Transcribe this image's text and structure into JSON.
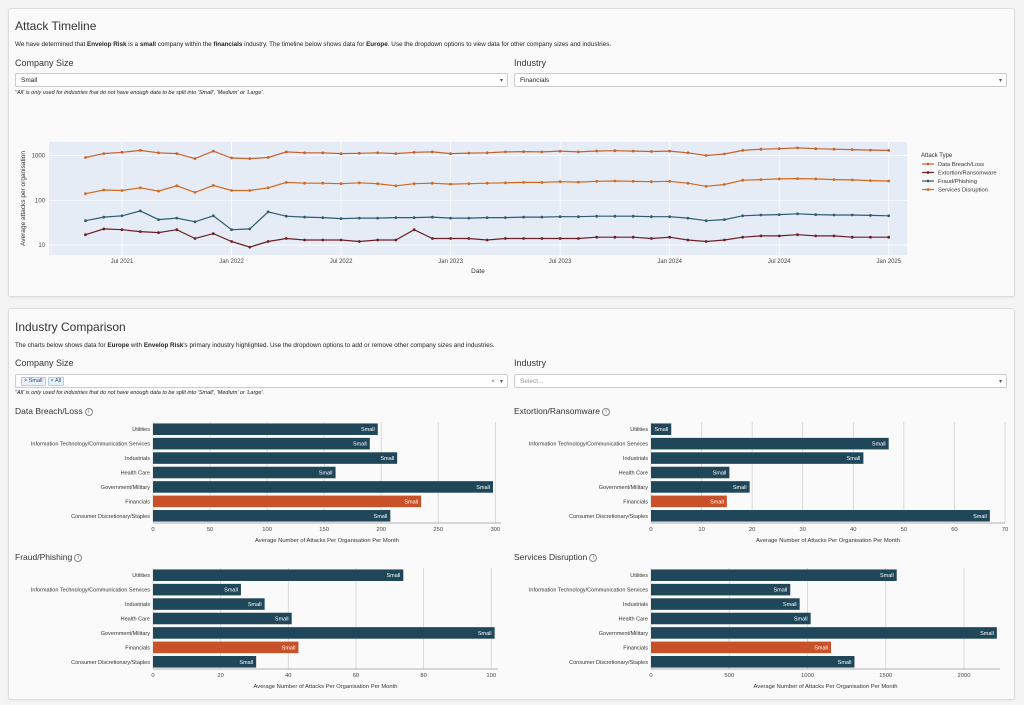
{
  "timeline": {
    "title": "Attack Timeline",
    "desc": {
      "p1": "We have determined that ",
      "company": "Envelop Risk",
      "p2": " is a ",
      "size": "small",
      "p3": " company within the ",
      "industry": "financials",
      "p4": " industry. The timeline below shows data for ",
      "region": "Europe",
      "p5": ". Use the dropdown options to view data for other company sizes and industries."
    },
    "company_size_label": "Company Size",
    "company_size_value": "Small",
    "industry_label": "Industry",
    "industry_value": "Financials",
    "note": "\"All' is only used for industries that do not have enough data to be split into 'Small', 'Medium' or 'Large'."
  },
  "comparison": {
    "title": "Industry Comparison",
    "desc": {
      "p1": "The charts below shows data for ",
      "region": "Europe",
      "p2": " with ",
      "company": "Envelop Risk",
      "p3": "'s primary industry highlighted. Use the dropdown options to add or remove other company sizes and industries."
    },
    "company_size_label": "Company Size",
    "chips": [
      "Small",
      "All"
    ],
    "chip_remove": "×",
    "clear": "×",
    "industry_label": "Industry",
    "industry_placeholder": "Select...",
    "note": "\"All' is only used for industries that do not have enough data to be split into 'Small', 'Medium' or 'Large'."
  },
  "colors": {
    "bar": "#1f4659",
    "highlight": "#c9512a",
    "plot_bg": "#e5ecf6",
    "breach": "#c8622c",
    "extortion": "#6d1f26",
    "fraud": "#2e5c70",
    "disruption": "#d2691e"
  },
  "chart_data": [
    {
      "type": "line",
      "x_axis_label": "Date",
      "y_axis_label": "Average attacks per organisation",
      "y_scale": "log",
      "ylim": [
        6,
        2000
      ],
      "x_range": [
        "2021-03",
        "2025-02"
      ],
      "x_ticks": [
        "Jul 2021",
        "Jan 2022",
        "Jul 2022",
        "Jan 2023",
        "Jul 2023",
        "Jan 2024",
        "Jul 2024",
        "Jan 2025"
      ],
      "y_ticks": [
        "10",
        "100",
        "1000"
      ],
      "legend_title": "Attack Type",
      "legend_position": "right",
      "x": [
        "2021-05",
        "2021-06",
        "2021-07",
        "2021-08",
        "2021-09",
        "2021-10",
        "2021-11",
        "2021-12",
        "2022-01",
        "2022-02",
        "2022-03",
        "2022-04",
        "2022-05",
        "2022-06",
        "2022-07",
        "2022-08",
        "2022-09",
        "2022-10",
        "2022-11",
        "2022-12",
        "2023-01",
        "2023-02",
        "2023-03",
        "2023-04",
        "2023-05",
        "2023-06",
        "2023-07",
        "2023-08",
        "2023-09",
        "2023-10",
        "2023-11",
        "2023-12",
        "2024-01",
        "2024-02",
        "2024-03",
        "2024-04",
        "2024-05",
        "2024-06",
        "2024-07",
        "2024-08",
        "2024-09",
        "2024-10",
        "2024-11",
        "2024-12",
        "2025-01"
      ],
      "series": [
        {
          "name": "Data Breach/Loss",
          "values": [
            900,
            1100,
            1180,
            1300,
            1150,
            1100,
            850,
            1250,
            880,
            850,
            900,
            1200,
            1150,
            1150,
            1100,
            1120,
            1150,
            1100,
            1180,
            1200,
            1100,
            1130,
            1150,
            1200,
            1220,
            1200,
            1250,
            1200,
            1260,
            1280,
            1250,
            1230,
            1250,
            1150,
            1000,
            1080,
            1300,
            1380,
            1420,
            1480,
            1420,
            1380,
            1350,
            1320,
            1300
          ],
          "color": "breach"
        },
        {
          "name": "Extortion/Ransomware",
          "values": [
            17,
            23,
            22,
            20,
            19,
            22,
            14,
            18,
            12,
            9,
            12,
            14,
            13,
            13,
            13,
            12,
            13,
            13,
            22,
            14,
            14,
            14,
            13,
            14,
            14,
            14,
            14,
            14,
            15,
            15,
            15,
            14,
            15,
            13,
            12,
            13,
            15,
            16,
            16,
            17,
            16,
            16,
            15,
            15,
            15
          ],
          "color": "extortion"
        },
        {
          "name": "Fraud/Phishing",
          "values": [
            35,
            42,
            45,
            58,
            37,
            40,
            33,
            45,
            22,
            23,
            55,
            44,
            42,
            41,
            39,
            40,
            40,
            41,
            41,
            42,
            40,
            40,
            41,
            41,
            42,
            42,
            43,
            43,
            44,
            44,
            44,
            43,
            43,
            40,
            35,
            37,
            45,
            47,
            48,
            50,
            48,
            47,
            47,
            46,
            45
          ],
          "color": "fraud"
        },
        {
          "name": "Services Disruption",
          "values": [
            140,
            170,
            165,
            190,
            160,
            210,
            150,
            215,
            165,
            165,
            190,
            250,
            240,
            240,
            235,
            245,
            235,
            210,
            235,
            240,
            230,
            235,
            240,
            245,
            250,
            250,
            260,
            255,
            265,
            270,
            265,
            260,
            265,
            240,
            205,
            225,
            280,
            290,
            300,
            305,
            300,
            290,
            285,
            275,
            270
          ],
          "color": "disruption"
        }
      ]
    },
    {
      "type": "bar",
      "orientation": "horizontal",
      "title": "Data Breach/Loss",
      "xlabel": "Average Number of Attacks Per Organisation Per Month",
      "categories": [
        "Utilities",
        "Information Technology/Communication Services",
        "Industrials",
        "Health Care",
        "Government/Military",
        "Financials",
        "Consumer Discretionary/Staples"
      ],
      "values": [
        197,
        190,
        214,
        160,
        298,
        235,
        208
      ],
      "bar_labels": [
        "Small",
        "Small",
        "Small",
        "Small",
        "Small",
        "Small",
        "Small"
      ],
      "highlight": "Financials",
      "xlim": [
        0,
        305
      ],
      "x_ticks": [
        0,
        50,
        100,
        150,
        200,
        250,
        300
      ]
    },
    {
      "type": "bar",
      "orientation": "horizontal",
      "title": "Extortion/Ransomware",
      "xlabel": "Average Number of Attacks Per Organisation Per Month",
      "categories": [
        "Utilities",
        "Information Technology/Communication Services",
        "Industrials",
        "Health Care",
        "Government/Military",
        "Financials",
        "Consumer Discretionary/Staples"
      ],
      "values": [
        4,
        47,
        42,
        15.5,
        19.5,
        15,
        67
      ],
      "bar_labels": [
        "Small",
        "Small",
        "Small",
        "Small",
        "Small",
        "Small",
        "Small"
      ],
      "highlight": "Financials",
      "xlim": [
        0,
        70
      ],
      "x_ticks": [
        0,
        10,
        20,
        30,
        40,
        50,
        60,
        70
      ]
    },
    {
      "type": "bar",
      "orientation": "horizontal",
      "title": "Fraud/Phishing",
      "xlabel": "Average Number of Attacks Per Organisation Per Month",
      "categories": [
        "Utilities",
        "Information Technology/Communication Services",
        "Industrials",
        "Health Care",
        "Government/Military",
        "Financials",
        "Consumer Discretionary/Staples"
      ],
      "values": [
        74,
        26,
        33,
        41,
        101,
        43,
        30.5
      ],
      "bar_labels": [
        "Small",
        "Small",
        "Small",
        "Small",
        "Small",
        "Small",
        "Small"
      ],
      "highlight": "Financials",
      "xlim": [
        0,
        102
      ],
      "x_ticks": [
        0,
        20,
        40,
        60,
        80,
        100
      ]
    },
    {
      "type": "bar",
      "orientation": "horizontal",
      "title": "Services Disruption",
      "xlabel": "Average Number of Attacks Per Organisation Per Month",
      "categories": [
        "Utilities",
        "Information Technology/Communication Services",
        "Industrials",
        "Health Care",
        "Government/Military",
        "Financials",
        "Consumer Discretionary/Staples"
      ],
      "values": [
        1570,
        890,
        950,
        1020,
        2210,
        1150,
        1300
      ],
      "bar_labels": [
        "Small",
        "Small",
        "Small",
        "Small",
        "Small",
        "Small",
        "Small"
      ],
      "highlight": "Financials",
      "xlim": [
        0,
        2230
      ],
      "x_ticks": [
        0,
        500,
        1000,
        1500,
        2000
      ]
    }
  ]
}
